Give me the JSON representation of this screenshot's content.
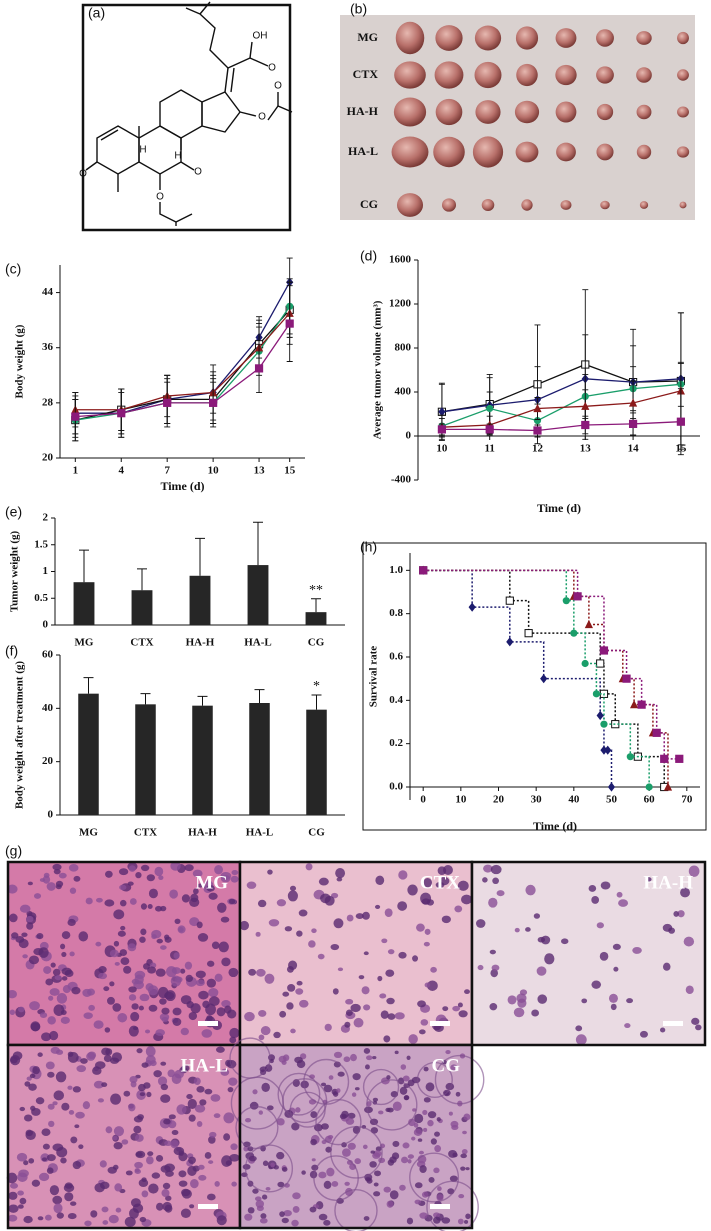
{
  "panel_labels": [
    "(a)",
    "(b)",
    "(c)",
    "(d)",
    "(e)",
    "(f)",
    "(h)",
    "(g)"
  ],
  "structure_labels": [
    "OH",
    "O",
    "O",
    "O",
    "O",
    "O",
    "O",
    "H",
    "H"
  ],
  "photo_labels": [
    "MG",
    "CTX",
    "HA-H",
    "HA-L",
    "CG"
  ],
  "histology_labels": [
    "MG",
    "CTX",
    "HA-H",
    "HA-L",
    "CG"
  ],
  "chart_data": [
    {
      "type": "line",
      "y_label": "Body weight (g)",
      "x_label": "Time (d)",
      "x": [
        1,
        4,
        7,
        10,
        13,
        15
      ],
      "xlim": [
        0,
        16
      ],
      "xticks": [
        1,
        4,
        7,
        10,
        13,
        15
      ],
      "ylim": [
        20,
        48
      ],
      "yticks": [
        20,
        28,
        36,
        44
      ],
      "series": [
        {
          "color": "#1c1c6e",
          "marker": "diamond",
          "values": [
            26.5,
            26.5,
            28.5,
            29.5,
            37.5,
            45.5
          ],
          "errors": [
            3,
            3.5,
            3.5,
            4,
            3,
            3.5
          ]
        },
        {
          "color": "#111111",
          "marker": "square-open",
          "values": [
            25.5,
            27,
            28.5,
            28.5,
            36.5,
            41.5
          ],
          "errors": [
            3,
            3,
            3.5,
            3.5,
            3.5,
            4
          ]
        },
        {
          "color": "#1a9e6a",
          "marker": "circle",
          "values": [
            25.5,
            26.5,
            28,
            28,
            35.5,
            42
          ],
          "errors": [
            3,
            3,
            3,
            3,
            3.5,
            4
          ]
        },
        {
          "color": "#8b1a1a",
          "marker": "triangle",
          "values": [
            27,
            27,
            29,
            29.5,
            36,
            41
          ],
          "errors": [
            2.5,
            3,
            3,
            3,
            3.5,
            4.5
          ]
        },
        {
          "color": "#8b1a7a",
          "marker": "square",
          "values": [
            26,
            26.5,
            28,
            28,
            33,
            39.5
          ],
          "errors": [
            3,
            3.5,
            3.5,
            3.5,
            3.5,
            5.5
          ]
        }
      ]
    },
    {
      "type": "line",
      "y_label": "Average tumor volume (mm³)",
      "x_label": "Time (d)",
      "x": [
        10,
        11,
        12,
        13,
        14,
        15
      ],
      "xlim": [
        9.5,
        15.4
      ],
      "xticks": [
        10,
        11,
        12,
        13,
        14,
        15
      ],
      "ylim": [
        -400,
        1600
      ],
      "yticks": [
        -400,
        0,
        400,
        800,
        1200,
        1600
      ],
      "series": [
        {
          "color": "#111111",
          "marker": "square-open",
          "values": [
            220,
            290,
            470,
            650,
            490,
            500
          ],
          "errors": [
            260,
            270,
            540,
            680,
            480,
            620
          ]
        },
        {
          "color": "#1c1c6e",
          "marker": "diamond",
          "values": [
            220,
            280,
            330,
            520,
            490,
            520
          ],
          "errors": [
            250,
            250,
            300,
            400,
            330,
            600
          ]
        },
        {
          "color": "#1a9e6a",
          "marker": "circle",
          "values": [
            90,
            250,
            140,
            360,
            430,
            470
          ],
          "errors": [
            100,
            150,
            150,
            200,
            200,
            200
          ]
        },
        {
          "color": "#8b1a1a",
          "marker": "triangle",
          "values": [
            80,
            100,
            250,
            270,
            300,
            410
          ],
          "errors": [
            80,
            80,
            100,
            150,
            200,
            250
          ]
        },
        {
          "color": "#8b1a7a",
          "marker": "square",
          "values": [
            60,
            60,
            50,
            100,
            110,
            130
          ],
          "errors": [
            50,
            50,
            50,
            80,
            100,
            300
          ]
        }
      ]
    },
    {
      "type": "bar",
      "y_label": "Tumor weight (g)",
      "categories": [
        "MG",
        "CTX",
        "HA-H",
        "HA-L",
        "CG"
      ],
      "values": [
        0.8,
        0.65,
        0.92,
        1.12,
        0.24
      ],
      "errors": [
        0.6,
        0.4,
        0.7,
        0.8,
        0.25
      ],
      "color": "#262626",
      "ylim": [
        0,
        2
      ],
      "yticks": [
        0,
        0.5,
        1,
        1.5,
        2
      ],
      "annotation": {
        "text": "**",
        "category": "CG"
      }
    },
    {
      "type": "bar",
      "y_label": "Body weight after treatment (g)",
      "categories": [
        "MG",
        "CTX",
        "HA-H",
        "HA-L",
        "CG"
      ],
      "values": [
        45.5,
        41.5,
        41,
        42,
        39.5
      ],
      "errors": [
        6,
        4,
        3.5,
        5,
        5.5
      ],
      "color": "#262626",
      "ylim": [
        0,
        60
      ],
      "yticks": [
        0,
        20,
        40,
        60
      ],
      "annotation": {
        "text": "*",
        "category": "CG"
      }
    },
    {
      "type": "line",
      "step": true,
      "frame": true,
      "y_label": "Survival rate",
      "x_label": "Time (d)",
      "xlim": [
        -3.5,
        73.5
      ],
      "xticks": [
        0,
        10,
        20,
        30,
        40,
        50,
        60,
        70
      ],
      "ylim": [
        -0.06,
        1.08
      ],
      "yticks": [
        {
          "value": 0,
          "label": "0.0"
        },
        {
          "value": 0.2,
          "label": "0.2"
        },
        {
          "value": 0.4,
          "label": "0.4"
        },
        {
          "value": 0.6,
          "label": "0.6"
        },
        {
          "value": 0.8,
          "label": "0.8"
        },
        {
          "value": 1,
          "label": "1.0"
        }
      ],
      "series": [
        {
          "color": "#1c1c6e",
          "marker": "diamond",
          "x": [
            0,
            13,
            23,
            32,
            47,
            48,
            49,
            50
          ],
          "values": [
            1,
            0.83,
            0.67,
            0.5,
            0.33,
            0.17,
            0.17,
            0
          ]
        },
        {
          "color": "#111111",
          "marker": "square-open",
          "x": [
            0,
            23,
            28,
            47,
            48,
            51,
            57,
            64
          ],
          "values": [
            1,
            0.86,
            0.71,
            0.57,
            0.43,
            0.29,
            0.14,
            0
          ]
        },
        {
          "color": "#1a9e6a",
          "marker": "circle",
          "x": [
            0,
            38,
            40,
            43,
            46,
            48,
            55,
            60
          ],
          "values": [
            1,
            0.86,
            0.71,
            0.57,
            0.43,
            0.29,
            0.14,
            0
          ]
        },
        {
          "color": "#8b1a1a",
          "marker": "triangle",
          "x": [
            0,
            40,
            44,
            48,
            53,
            56,
            61,
            65
          ],
          "values": [
            1,
            0.88,
            0.75,
            0.63,
            0.5,
            0.38,
            0.25,
            0
          ]
        },
        {
          "color": "#8b1a7a",
          "marker": "square",
          "x": [
            0,
            41,
            48,
            54,
            58,
            62,
            64,
            68
          ],
          "values": [
            1,
            0.88,
            0.63,
            0.5,
            0.38,
            0.25,
            0.13,
            0.13
          ]
        }
      ]
    }
  ]
}
